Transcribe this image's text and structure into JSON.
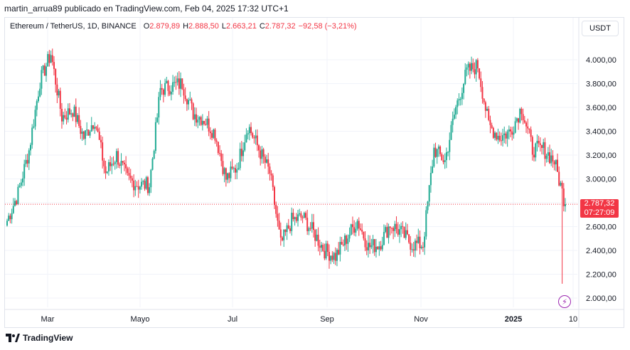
{
  "header": {
    "publisher_line": "martin_arrua89 publicado en TradingView.com, Feb 04, 2025 17:32 UTC+1"
  },
  "legend": {
    "symbol": "Ethereum / TetherUS, 1D, BINANCE",
    "open_label": "O",
    "open": "2.879,89",
    "high_label": "H",
    "high": "2.888,50",
    "low_label": "L",
    "low": "2.663,21",
    "close_label": "C",
    "close": "2.787,32",
    "change": "−92,58 (−3,21%)"
  },
  "toolbar": {
    "currency_label": "USDT"
  },
  "price_tag": {
    "price": "2.787,32",
    "countdown": "07:27:09"
  },
  "footer": {
    "brand": "TradingView"
  },
  "colors": {
    "up": "#22ab94",
    "down": "#f23645",
    "grid": "#f0f3fa",
    "last_price_line": "#f23645"
  },
  "chart_data": {
    "type": "candlestick",
    "symbol": "ETHUSDT",
    "timeframe": "1D",
    "y_axis": {
      "ticks": [
        2000,
        2200,
        2400,
        2600,
        2800,
        3000,
        3200,
        3400,
        3600,
        3800,
        4000
      ],
      "tick_labels": [
        "2.000,00",
        "2.200,00",
        "2.400,00",
        "2.600,00",
        "2.800,00",
        "3.000,00",
        "3.200,00",
        "3.400,00",
        "3.600,00",
        "3.800,00",
        "4.000,00"
      ]
    },
    "x_axis": {
      "tick_labels": [
        "Mar",
        "Mayo",
        "Jul",
        "Sep",
        "Nov",
        "2025",
        "10"
      ]
    },
    "last_price": 2787.32,
    "weekly_closes_approx": [
      {
        "t": "Feb-12",
        "c": 2650
      },
      {
        "t": "Feb-19",
        "c": 2880
      },
      {
        "t": "Feb-26",
        "c": 3240
      },
      {
        "t": "Mar-04",
        "c": 3820
      },
      {
        "t": "Mar-11",
        "c": 4050
      },
      {
        "t": "Mar-18",
        "c": 3520
      },
      {
        "t": "Mar-25",
        "c": 3580
      },
      {
        "t": "Apr-01",
        "c": 3350
      },
      {
        "t": "Apr-08",
        "c": 3500
      },
      {
        "t": "Apr-15",
        "c": 3050
      },
      {
        "t": "Apr-22",
        "c": 3200
      },
      {
        "t": "Apr-29",
        "c": 3000
      },
      {
        "t": "May-06",
        "c": 2950
      },
      {
        "t": "May-13",
        "c": 2950
      },
      {
        "t": "May-20",
        "c": 3750
      },
      {
        "t": "May-27",
        "c": 3780
      },
      {
        "t": "Jun-03",
        "c": 3800
      },
      {
        "t": "Jun-10",
        "c": 3550
      },
      {
        "t": "Jun-17",
        "c": 3500
      },
      {
        "t": "Jun-24",
        "c": 3380
      },
      {
        "t": "Jul-01",
        "c": 3000
      },
      {
        "t": "Jul-08",
        "c": 3100
      },
      {
        "t": "Jul-15",
        "c": 3450
      },
      {
        "t": "Jul-22",
        "c": 3250
      },
      {
        "t": "Jul-29",
        "c": 3050
      },
      {
        "t": "Aug-05",
        "c": 2450
      },
      {
        "t": "Aug-12",
        "c": 2650
      },
      {
        "t": "Aug-19",
        "c": 2680
      },
      {
        "t": "Aug-26",
        "c": 2550
      },
      {
        "t": "Sep-02",
        "c": 2400
      },
      {
        "t": "Sep-09",
        "c": 2350
      },
      {
        "t": "Sep-16",
        "c": 2500
      },
      {
        "t": "Sep-23",
        "c": 2650
      },
      {
        "t": "Sep-30",
        "c": 2430
      },
      {
        "t": "Oct-07",
        "c": 2450
      },
      {
        "t": "Oct-14",
        "c": 2620
      },
      {
        "t": "Oct-21",
        "c": 2550
      },
      {
        "t": "Oct-28",
        "c": 2450
      },
      {
        "t": "Nov-04",
        "c": 2450
      },
      {
        "t": "Nov-11",
        "c": 3250
      },
      {
        "t": "Nov-18",
        "c": 3150
      },
      {
        "t": "Nov-25",
        "c": 3600
      },
      {
        "t": "Dec-02",
        "c": 3900
      },
      {
        "t": "Dec-09",
        "c": 3950
      },
      {
        "t": "Dec-16",
        "c": 3450
      },
      {
        "t": "Dec-23",
        "c": 3350
      },
      {
        "t": "Dec-30",
        "c": 3400
      },
      {
        "t": "Jan-06",
        "c": 3600
      },
      {
        "t": "Jan-13",
        "c": 3250
      },
      {
        "t": "Jan-20",
        "c": 3250
      },
      {
        "t": "Jan-27",
        "c": 3150
      },
      {
        "t": "Feb-03",
        "c": 2787
      }
    ]
  }
}
